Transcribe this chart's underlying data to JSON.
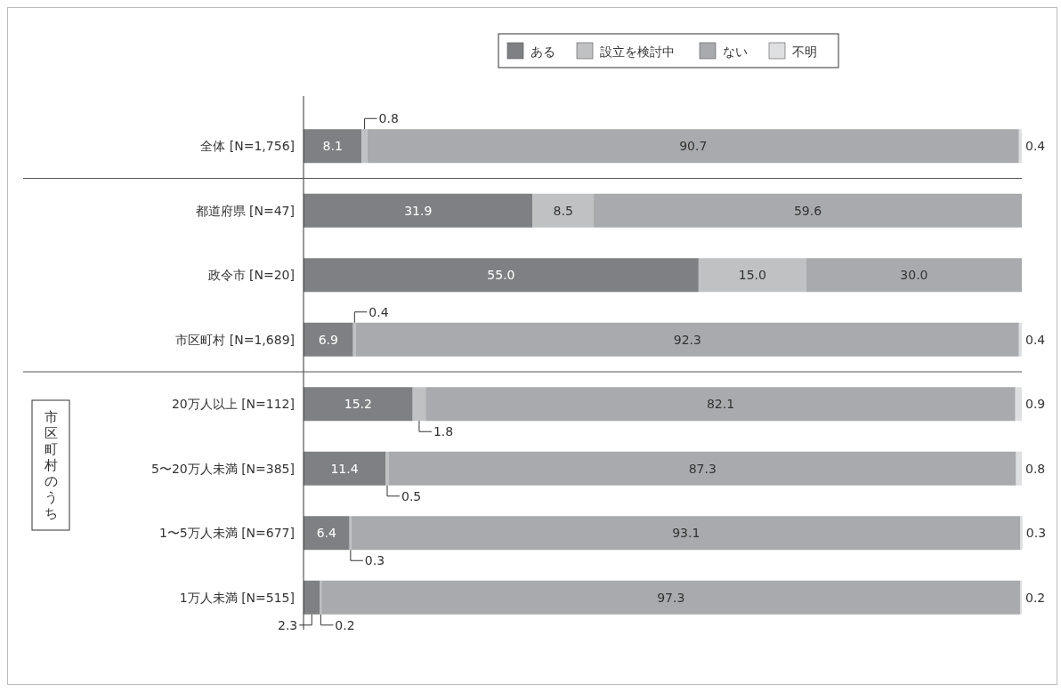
{
  "chart_data": {
    "type": "bar",
    "orientation": "horizontal",
    "stacked": true,
    "legend": "top",
    "tick_labels": "y",
    "categories": [
      "全体 [N=1,756]",
      "都道府県 [N=47]",
      "政令市 [N=20]",
      "市区町村 [N=1,689]",
      "20万人以上 [N=112]",
      "5〜20万人未満 [N=385]",
      "1〜5万人未満 [N=677]",
      "1万人未満 [N=515]"
    ],
    "series": [
      {
        "name": "ある",
        "color": "#7f8083",
        "values": [
          8.1,
          31.9,
          55.0,
          6.9,
          15.2,
          11.4,
          6.4,
          2.3
        ],
        "value_labels": [
          "8.1",
          "31.9",
          "55.0",
          "6.9",
          "15.2",
          "11.4",
          "6.4",
          "2.3"
        ]
      },
      {
        "name": "設立を検討中",
        "color": "#c0c1c3",
        "values": [
          0.8,
          8.5,
          15.0,
          0.4,
          1.8,
          0.5,
          0.3,
          0.2
        ],
        "value_labels": [
          "0.8",
          "8.5",
          "15.0",
          "0.4",
          "1.8",
          "0.5",
          "0.3",
          "0.2"
        ]
      },
      {
        "name": "ない",
        "color": "#a9aaad",
        "values": [
          90.7,
          59.6,
          30.0,
          92.3,
          82.1,
          87.3,
          93.1,
          97.3
        ],
        "value_labels": [
          "90.7",
          "59.6",
          "30.0",
          "92.3",
          "82.1",
          "87.3",
          "93.1",
          "97.3"
        ]
      },
      {
        "name": "不明",
        "color": "#dedfe0",
        "values": [
          0.4,
          null,
          null,
          0.4,
          0.9,
          0.8,
          0.3,
          0.2
        ],
        "value_labels": [
          "0.4",
          null,
          null,
          "0.4",
          "0.9",
          "0.8",
          "0.3",
          "0.2"
        ]
      }
    ],
    "annotations": [
      "市区町村のうち"
    ]
  }
}
